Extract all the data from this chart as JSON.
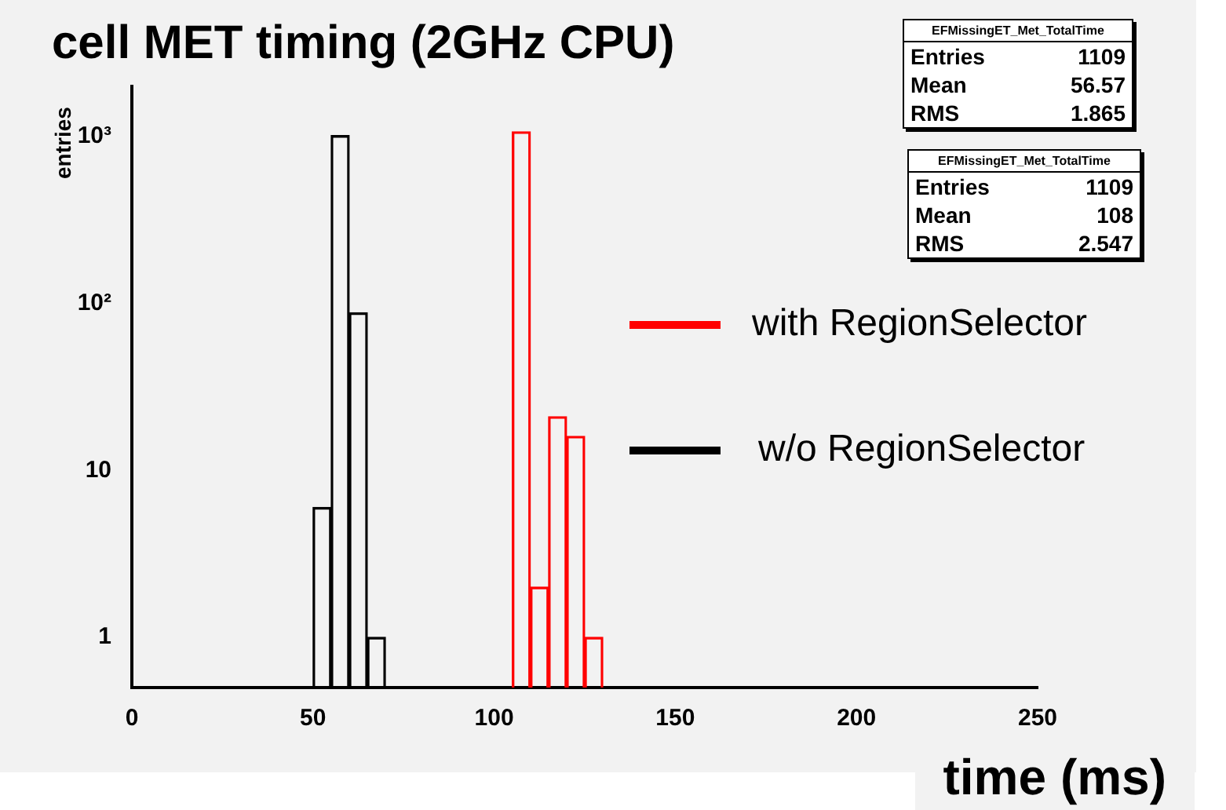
{
  "chart_data": {
    "type": "bar",
    "title": "cell MET timing (2GHz CPU)",
    "xlabel": "time (ms)",
    "ylabel": "entries",
    "series": [
      {
        "name": "with RegionSelector",
        "color": "#ff0000",
        "x": [
          107.5,
          112.5,
          117.5,
          122.5,
          127.5
        ],
        "values": [
          1069,
          2,
          21,
          16,
          1
        ]
      },
      {
        "name": "w/o RegionSelector",
        "color": "#000000",
        "x": [
          52.5,
          57.5,
          62.5,
          67.5
        ],
        "values": [
          6,
          1014,
          88,
          1
        ]
      }
    ],
    "log": "y",
    "xlim": [
      0,
      250
    ],
    "xticks": [
      0,
      50,
      100,
      150,
      200,
      250
    ],
    "ylim": [
      0.5,
      2000
    ],
    "yticks": [
      {
        "value": 1,
        "label": "1"
      },
      {
        "value": 10,
        "label": "10"
      },
      {
        "value": 100,
        "label": "10²"
      },
      {
        "value": 1000,
        "label": "10³"
      }
    ],
    "legend": "right",
    "grid": false,
    "annotations": [
      "EFMissingET_Met_TotalTime",
      "Entries",
      "1109",
      "Mean",
      "56.57",
      "RMS",
      "1.865",
      "EFMissingET_Met_TotalTime",
      "Entries",
      "1109",
      "Mean",
      "108",
      "RMS",
      "2.547"
    ]
  }
}
